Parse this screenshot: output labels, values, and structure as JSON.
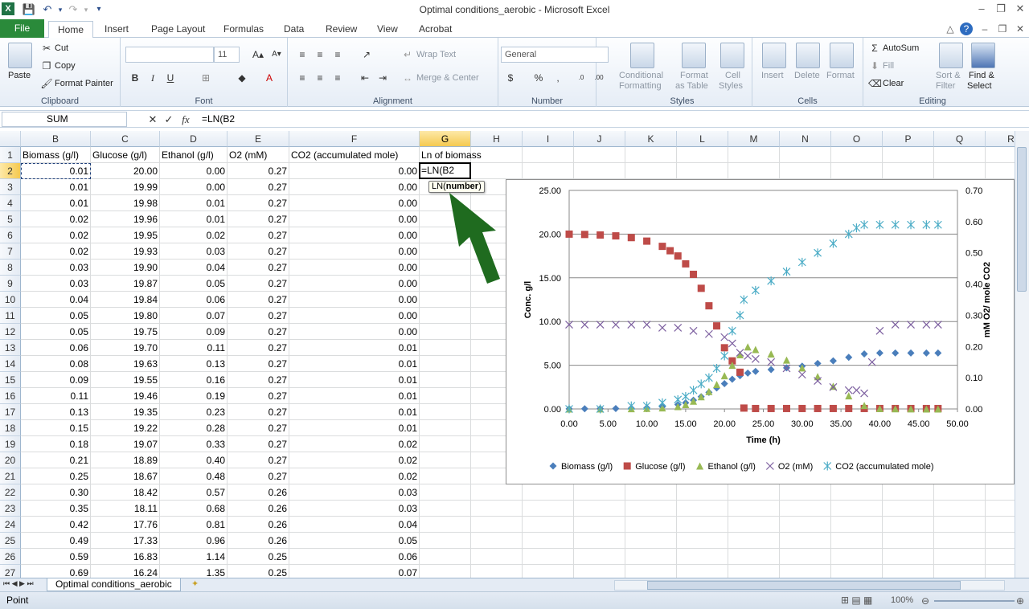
{
  "window": {
    "title": "Optimal conditions_aerobic  -  Microsoft Excel",
    "app_icon": "X"
  },
  "tabs": [
    "File",
    "Home",
    "Insert",
    "Page Layout",
    "Formulas",
    "Data",
    "Review",
    "View",
    "Acrobat"
  ],
  "ribbon": {
    "clipboard": {
      "label": "Clipboard",
      "paste": "Paste",
      "cut": "Cut",
      "copy": "Copy",
      "format_painter": "Format Painter"
    },
    "font": {
      "label": "Font",
      "size": "11"
    },
    "alignment": {
      "label": "Alignment",
      "wrap_text": "Wrap Text",
      "merge_center": "Merge & Center"
    },
    "number": {
      "label": "Number",
      "format": "General"
    },
    "styles": {
      "label": "Styles",
      "conditional": "Conditional",
      "conditional2": "Formatting",
      "format_table": "Format",
      "format_table2": "as Table",
      "cell_styles": "Cell",
      "cell_styles2": "Styles"
    },
    "cells": {
      "label": "Cells",
      "insert": "Insert",
      "delete": "Delete",
      "format": "Format"
    },
    "editing": {
      "label": "Editing",
      "autosum": "AutoSum",
      "fill": "Fill",
      "clear": "Clear",
      "sort": "Sort &",
      "sort2": "Filter",
      "find": "Find &",
      "find2": "Select"
    }
  },
  "formula_bar": {
    "name_box": "SUM",
    "formula": "=LN(B2"
  },
  "columns": [
    "B",
    "C",
    "D",
    "E",
    "F",
    "G",
    "H",
    "I",
    "J",
    "K",
    "L",
    "M",
    "N",
    "O",
    "P",
    "Q",
    "R"
  ],
  "header_row": {
    "B": "Biomass (g/l)",
    "C": "Glucose (g/l)",
    "D": "Ethanol (g/l)",
    "E": "O2 (mM)",
    "F": "CO2 (accumulated mole)",
    "G": "Ln of biomass"
  },
  "active_cell_text": "=LN(B2",
  "tooltip": {
    "fn": "LN(",
    "arg": "number",
    ")": ")"
  },
  "rows": [
    [
      "0.01",
      "20.00",
      "0.00",
      "0.27",
      "0.00"
    ],
    [
      "0.01",
      "19.99",
      "0.00",
      "0.27",
      "0.00"
    ],
    [
      "0.01",
      "19.98",
      "0.01",
      "0.27",
      "0.00"
    ],
    [
      "0.02",
      "19.96",
      "0.01",
      "0.27",
      "0.00"
    ],
    [
      "0.02",
      "19.95",
      "0.02",
      "0.27",
      "0.00"
    ],
    [
      "0.02",
      "19.93",
      "0.03",
      "0.27",
      "0.00"
    ],
    [
      "0.03",
      "19.90",
      "0.04",
      "0.27",
      "0.00"
    ],
    [
      "0.03",
      "19.87",
      "0.05",
      "0.27",
      "0.00"
    ],
    [
      "0.04",
      "19.84",
      "0.06",
      "0.27",
      "0.00"
    ],
    [
      "0.05",
      "19.80",
      "0.07",
      "0.27",
      "0.00"
    ],
    [
      "0.05",
      "19.75",
      "0.09",
      "0.27",
      "0.00"
    ],
    [
      "0.06",
      "19.70",
      "0.11",
      "0.27",
      "0.01"
    ],
    [
      "0.08",
      "19.63",
      "0.13",
      "0.27",
      "0.01"
    ],
    [
      "0.09",
      "19.55",
      "0.16",
      "0.27",
      "0.01"
    ],
    [
      "0.11",
      "19.46",
      "0.19",
      "0.27",
      "0.01"
    ],
    [
      "0.13",
      "19.35",
      "0.23",
      "0.27",
      "0.01"
    ],
    [
      "0.15",
      "19.22",
      "0.28",
      "0.27",
      "0.01"
    ],
    [
      "0.18",
      "19.07",
      "0.33",
      "0.27",
      "0.02"
    ],
    [
      "0.21",
      "18.89",
      "0.40",
      "0.27",
      "0.02"
    ],
    [
      "0.25",
      "18.67",
      "0.48",
      "0.27",
      "0.02"
    ],
    [
      "0.30",
      "18.42",
      "0.57",
      "0.26",
      "0.03"
    ],
    [
      "0.35",
      "18.11",
      "0.68",
      "0.26",
      "0.03"
    ],
    [
      "0.42",
      "17.76",
      "0.81",
      "0.26",
      "0.04"
    ],
    [
      "0.49",
      "17.33",
      "0.96",
      "0.26",
      "0.05"
    ],
    [
      "0.59",
      "16.83",
      "1.14",
      "0.25",
      "0.06"
    ],
    [
      "0.69",
      "16.24",
      "1.35",
      "0.25",
      "0.07"
    ]
  ],
  "sheet_tab": "Optimal conditions_aerobic",
  "status": {
    "mode": "Point",
    "zoom": "100%"
  },
  "chart_data": {
    "type": "scatter",
    "title": "",
    "xlabel": "Time (h)",
    "ylabel": "Conc. g/l",
    "y2label": "mM O2/ mole CO2",
    "xlim": [
      0,
      50
    ],
    "ylim": [
      0,
      25
    ],
    "y2lim": [
      0,
      0.7
    ],
    "xticks": [
      "0.00",
      "5.00",
      "10.00",
      "15.00",
      "20.00",
      "25.00",
      "30.00",
      "35.00",
      "40.00",
      "45.00",
      "50.00"
    ],
    "yticks": [
      "0.00",
      "5.00",
      "10.00",
      "15.00",
      "20.00",
      "25.00"
    ],
    "y2ticks": [
      "0.00",
      "0.10",
      "0.20",
      "0.30",
      "0.40",
      "0.50",
      "0.60",
      "0.70"
    ],
    "grid": true,
    "legend_position": "bottom",
    "series": [
      {
        "name": "Biomass (g/l)",
        "axis": "left",
        "color": "#4a7ebb",
        "marker": "diamond",
        "x": [
          0,
          2,
          4,
          6,
          8,
          10,
          12,
          14,
          15,
          16,
          17,
          18,
          19,
          20,
          21,
          22,
          23,
          24,
          26,
          28,
          30,
          32,
          34,
          36,
          38,
          40,
          42,
          44,
          46,
          47.5
        ],
        "y": [
          0.01,
          0.02,
          0.03,
          0.05,
          0.08,
          0.13,
          0.25,
          0.5,
          0.7,
          1.0,
          1.4,
          1.9,
          2.4,
          2.9,
          3.4,
          3.8,
          4.1,
          4.3,
          4.5,
          4.7,
          4.9,
          5.2,
          5.5,
          5.9,
          6.3,
          6.4,
          6.4,
          6.4,
          6.4,
          6.4
        ]
      },
      {
        "name": "Glucose (g/l)",
        "axis": "left",
        "color": "#be4b48",
        "marker": "square",
        "x": [
          0,
          2,
          4,
          6,
          8,
          10,
          12,
          13,
          14,
          15,
          16,
          17,
          18,
          19,
          20,
          21,
          22,
          22.5,
          24,
          26,
          28,
          30,
          32,
          34,
          36,
          38,
          40,
          42,
          44,
          46,
          47.5
        ],
        "y": [
          20.0,
          19.96,
          19.9,
          19.8,
          19.6,
          19.2,
          18.6,
          18.1,
          17.5,
          16.6,
          15.4,
          13.8,
          11.8,
          9.5,
          7.0,
          5.5,
          4.2,
          0.1,
          0.05,
          0.05,
          0.05,
          0.05,
          0.05,
          0.05,
          0.05,
          0.05,
          0.05,
          0.05,
          0.05,
          0.05,
          0.05
        ]
      },
      {
        "name": "Ethanol (g/l)",
        "axis": "left",
        "color": "#98b954",
        "marker": "triangle",
        "x": [
          0,
          4,
          8,
          10,
          12,
          14,
          15,
          16,
          17,
          18,
          19,
          20,
          21,
          22,
          23,
          24,
          26,
          28,
          30,
          32,
          34,
          36,
          38,
          40,
          42,
          44,
          46,
          47.5
        ],
        "y": [
          0.0,
          0.01,
          0.04,
          0.07,
          0.13,
          0.28,
          0.5,
          0.9,
          1.4,
          2.0,
          2.8,
          3.8,
          5.0,
          6.2,
          7.1,
          6.8,
          6.3,
          5.6,
          4.7,
          3.7,
          2.6,
          1.5,
          0.4,
          0.05,
          0.02,
          0.01,
          0.0,
          0.0
        ]
      },
      {
        "name": "O2 (mM)",
        "axis": "right",
        "color": "#7d60a0",
        "marker": "x",
        "x": [
          0,
          2,
          4,
          6,
          8,
          10,
          12,
          14,
          16,
          18,
          20,
          21,
          22,
          23,
          24,
          26,
          28,
          30,
          32,
          34,
          36,
          37,
          38,
          39,
          40,
          42,
          44,
          46,
          47.5
        ],
        "y": [
          0.27,
          0.27,
          0.27,
          0.27,
          0.27,
          0.27,
          0.26,
          0.26,
          0.25,
          0.24,
          0.23,
          0.21,
          0.18,
          0.17,
          0.16,
          0.15,
          0.13,
          0.11,
          0.09,
          0.07,
          0.06,
          0.06,
          0.05,
          0.15,
          0.25,
          0.27,
          0.27,
          0.27,
          0.27
        ]
      },
      {
        "name": "CO2 (accumulated mole)",
        "axis": "right",
        "color": "#4bacc6",
        "marker": "asterisk",
        "x": [
          0,
          4,
          8,
          10,
          12,
          14,
          15,
          16,
          17,
          18,
          19,
          20,
          21,
          22,
          22.5,
          24,
          26,
          28,
          30,
          32,
          34,
          36,
          37,
          38,
          40,
          42,
          44,
          46,
          47.5
        ],
        "y": [
          0.0,
          0.0,
          0.01,
          0.01,
          0.02,
          0.03,
          0.04,
          0.06,
          0.08,
          0.1,
          0.13,
          0.17,
          0.25,
          0.3,
          0.35,
          0.38,
          0.41,
          0.44,
          0.47,
          0.5,
          0.53,
          0.56,
          0.58,
          0.59,
          0.59,
          0.59,
          0.59,
          0.59,
          0.59
        ]
      }
    ]
  }
}
